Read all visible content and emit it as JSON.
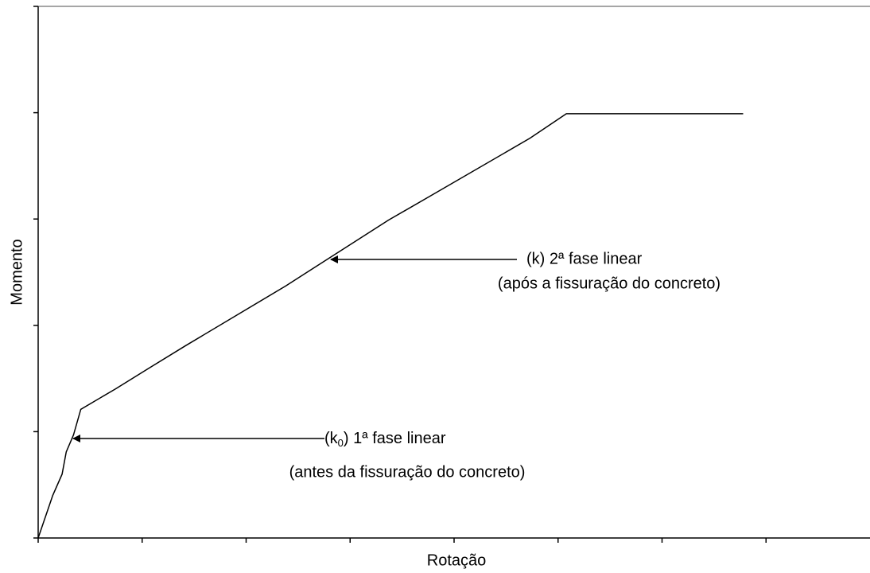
{
  "chart_data": {
    "type": "line",
    "x_label": "Rotação",
    "y_label": "Momento",
    "x": [
      0,
      0.14,
      0.23,
      0.27,
      0.34,
      0.41,
      0.74,
      1.07,
      1.42,
      2.38,
      3.37,
      3.76,
      4.73,
      5.08,
      6.78
    ],
    "series": [
      {
        "color": "#000000",
        "values": [
          0,
          0.4,
          0.6,
          0.81,
          0.97,
          1.21,
          1.4,
          1.6,
          1.81,
          2.37,
          2.99,
          3.21,
          3.76,
          3.99,
          3.99
        ]
      }
    ],
    "xlim": [
      0,
      8
    ],
    "xticks": [
      0,
      1,
      2,
      3,
      4,
      5,
      6,
      7
    ],
    "ylim": [
      0,
      5
    ],
    "yticks": [
      0,
      1,
      2,
      3,
      4,
      5
    ],
    "annotations": [
      {
        "lines": [
          "(k) 2ª fase linear",
          "(após a fissuração do concreto)"
        ]
      },
      {
        "parts": [
          "(k",
          "0",
          ") 1ª fase linear"
        ],
        "lines": [
          "(antes da fissuração do concreto)"
        ]
      }
    ]
  }
}
